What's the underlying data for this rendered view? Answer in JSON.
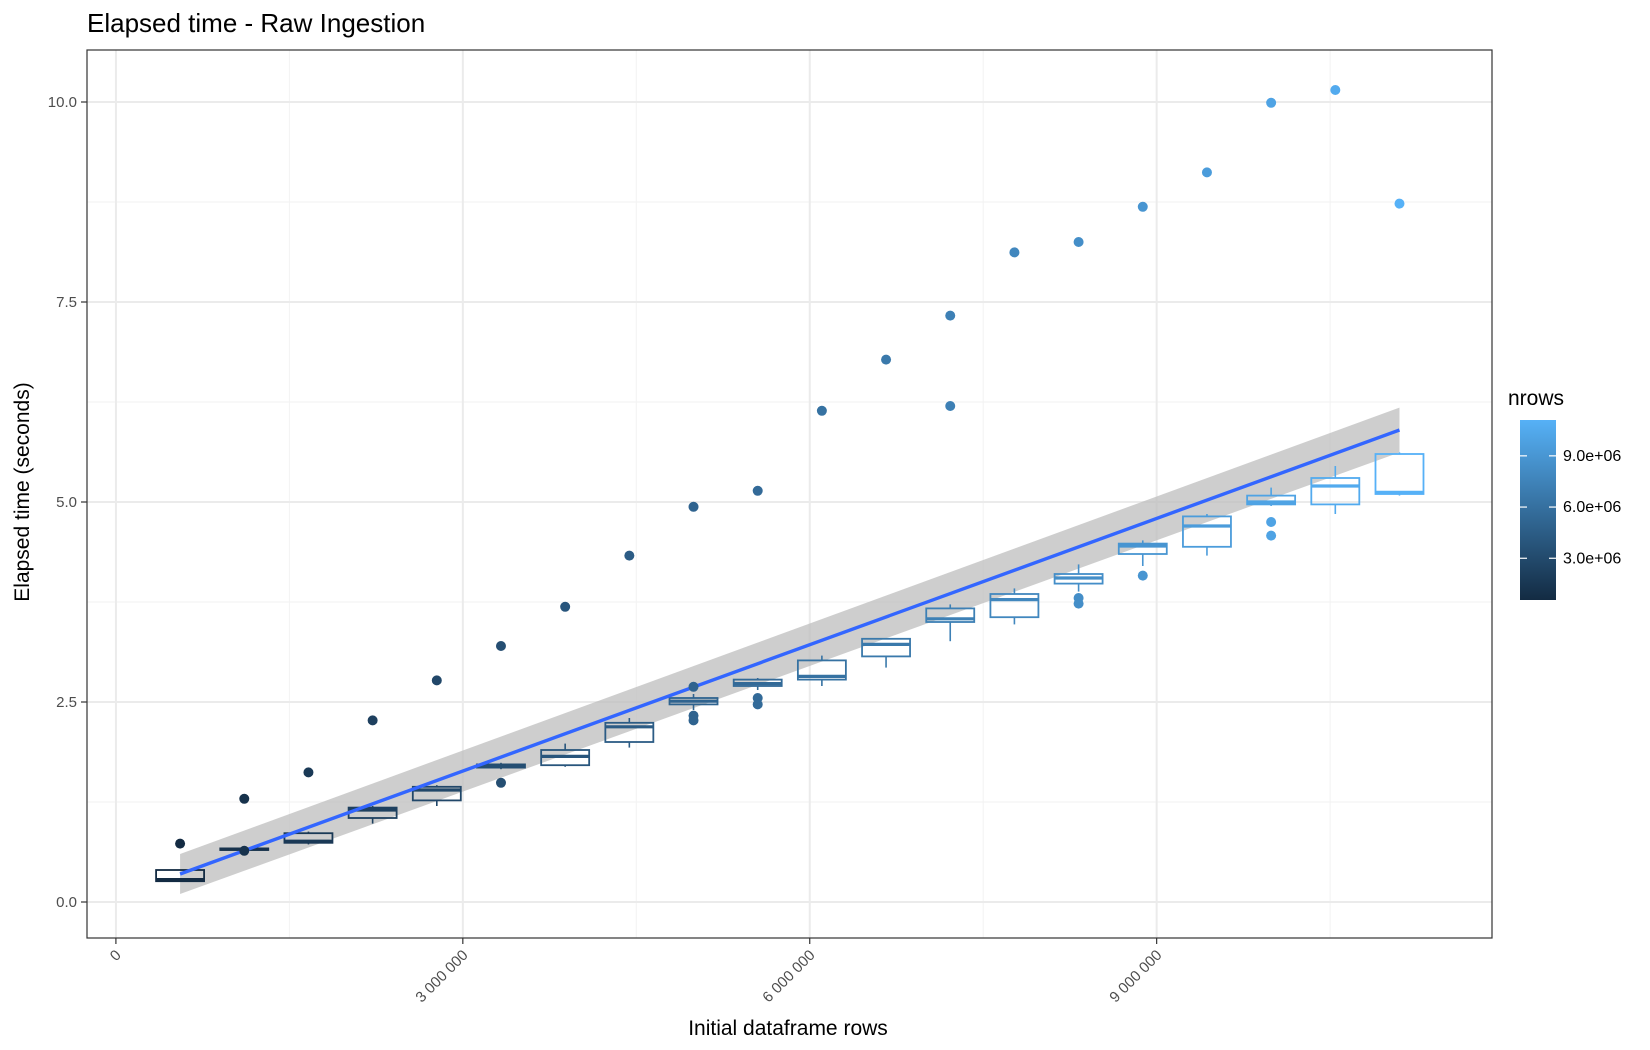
{
  "chart_data": {
    "type": "scatter",
    "title": "Elapsed time - Raw Ingestion",
    "xlabel": "Initial dataframe rows",
    "ylabel": "Elapsed time (seconds)",
    "xlim": [
      -250000,
      11900000
    ],
    "ylim": [
      -0.45,
      10.65
    ],
    "x_ticks": [
      0,
      3000000,
      6000000,
      9000000
    ],
    "x_tick_labels": [
      "0",
      "3 000 000",
      "6 000 000",
      "9 000 000"
    ],
    "y_ticks": [
      0,
      2.5,
      5,
      7.5,
      10
    ],
    "y_tick_labels": [
      "0.0",
      "2.5",
      "5.0",
      "7.5",
      "10.0"
    ],
    "grid": true,
    "legend": {
      "title": "nrows",
      "placement": "right",
      "type": "colorbar",
      "min": 555000,
      "max": 11100000,
      "ticks": [
        3000000,
        6000000,
        9000000
      ],
      "tick_labels": [
        "3.0e+06",
        "6.0e+06",
        "9.0e+06"
      ],
      "color_low": "#132b43",
      "color_high": "#56b1f7"
    },
    "boxplots": [
      {
        "x": 555000,
        "q1": 0.26,
        "median": 0.28,
        "q3": 0.4,
        "whisker_low": 0.26,
        "whisker_high": 0.4
      },
      {
        "x": 1110000,
        "q1": 0.65,
        "median": 0.66,
        "q3": 0.67,
        "whisker_low": 0.65,
        "whisker_high": 0.68
      },
      {
        "x": 1665000,
        "q1": 0.74,
        "median": 0.76,
        "q3": 0.86,
        "whisker_low": 0.72,
        "whisker_high": 0.88
      },
      {
        "x": 2220000,
        "q1": 1.05,
        "median": 1.15,
        "q3": 1.18,
        "whisker_low": 0.98,
        "whisker_high": 1.2
      },
      {
        "x": 2775000,
        "q1": 1.27,
        "median": 1.4,
        "q3": 1.44,
        "whisker_low": 1.2,
        "whisker_high": 1.46
      },
      {
        "x": 3330000,
        "q1": 1.68,
        "median": 1.7,
        "q3": 1.72,
        "whisker_low": 1.66,
        "whisker_high": 1.74
      },
      {
        "x": 3885000,
        "q1": 1.71,
        "median": 1.82,
        "q3": 1.9,
        "whisker_low": 1.69,
        "whisker_high": 1.98
      },
      {
        "x": 4440000,
        "q1": 2.0,
        "median": 2.19,
        "q3": 2.24,
        "whisker_low": 1.93,
        "whisker_high": 2.3
      },
      {
        "x": 4995000,
        "q1": 2.47,
        "median": 2.51,
        "q3": 2.55,
        "whisker_low": 2.4,
        "whisker_high": 2.6
      },
      {
        "x": 5550000,
        "q1": 2.7,
        "median": 2.73,
        "q3": 2.78,
        "whisker_low": 2.65,
        "whisker_high": 2.8
      },
      {
        "x": 6105000,
        "q1": 2.78,
        "median": 2.82,
        "q3": 3.02,
        "whisker_low": 2.7,
        "whisker_high": 3.08
      },
      {
        "x": 6660000,
        "q1": 3.07,
        "median": 3.22,
        "q3": 3.29,
        "whisker_low": 2.93,
        "whisker_high": 3.3
      },
      {
        "x": 7215000,
        "q1": 3.5,
        "median": 3.54,
        "q3": 3.67,
        "whisker_low": 3.26,
        "whisker_high": 3.72
      },
      {
        "x": 7770000,
        "q1": 3.56,
        "median": 3.78,
        "q3": 3.85,
        "whisker_low": 3.47,
        "whisker_high": 3.92
      },
      {
        "x": 8325000,
        "q1": 3.98,
        "median": 4.05,
        "q3": 4.1,
        "whisker_low": 3.88,
        "whisker_high": 4.22
      },
      {
        "x": 8880000,
        "q1": 4.35,
        "median": 4.45,
        "q3": 4.48,
        "whisker_low": 4.2,
        "whisker_high": 4.52
      },
      {
        "x": 9435000,
        "q1": 4.44,
        "median": 4.7,
        "q3": 4.82,
        "whisker_low": 4.33,
        "whisker_high": 4.85
      },
      {
        "x": 9990000,
        "q1": 4.97,
        "median": 5.0,
        "q3": 5.08,
        "whisker_low": 4.95,
        "whisker_high": 5.18
      },
      {
        "x": 10545000,
        "q1": 4.97,
        "median": 5.2,
        "q3": 5.3,
        "whisker_low": 4.85,
        "whisker_high": 5.45
      },
      {
        "x": 11100000,
        "q1": 5.1,
        "median": 5.12,
        "q3": 5.6,
        "whisker_low": 5.08,
        "whisker_high": 5.62
      }
    ],
    "outliers": [
      {
        "x": 555000,
        "y": 0.73
      },
      {
        "x": 1110000,
        "y": 1.29
      },
      {
        "x": 1110000,
        "y": 0.64
      },
      {
        "x": 1665000,
        "y": 1.62
      },
      {
        "x": 2220000,
        "y": 2.27
      },
      {
        "x": 2775000,
        "y": 2.77
      },
      {
        "x": 3330000,
        "y": 3.2
      },
      {
        "x": 3330000,
        "y": 1.49
      },
      {
        "x": 3885000,
        "y": 3.69
      },
      {
        "x": 4440000,
        "y": 4.33
      },
      {
        "x": 4995000,
        "y": 4.94
      },
      {
        "x": 4995000,
        "y": 2.69
      },
      {
        "x": 4995000,
        "y": 2.33
      },
      {
        "x": 4995000,
        "y": 2.27
      },
      {
        "x": 5550000,
        "y": 5.14
      },
      {
        "x": 5550000,
        "y": 2.55
      },
      {
        "x": 5550000,
        "y": 2.47
      },
      {
        "x": 6105000,
        "y": 6.14
      },
      {
        "x": 6660000,
        "y": 6.78
      },
      {
        "x": 7215000,
        "y": 7.33
      },
      {
        "x": 7215000,
        "y": 6.2
      },
      {
        "x": 7770000,
        "y": 8.12
      },
      {
        "x": 8325000,
        "y": 8.25
      },
      {
        "x": 8325000,
        "y": 3.8
      },
      {
        "x": 8325000,
        "y": 3.73
      },
      {
        "x": 8880000,
        "y": 8.69
      },
      {
        "x": 8880000,
        "y": 4.08
      },
      {
        "x": 9435000,
        "y": 9.12
      },
      {
        "x": 9990000,
        "y": 9.99
      },
      {
        "x": 9990000,
        "y": 4.75
      },
      {
        "x": 9990000,
        "y": 4.58
      },
      {
        "x": 10545000,
        "y": 10.15
      },
      {
        "x": 11100000,
        "y": 8.73
      }
    ],
    "trend": {
      "method": "linear",
      "color": "#3366ff",
      "band_color": "#bebebe",
      "x": [
        555000,
        11100000
      ],
      "y": [
        0.35,
        5.9
      ],
      "ci_lower": [
        0.1,
        5.62
      ],
      "ci_upper": [
        0.6,
        6.18
      ]
    }
  }
}
